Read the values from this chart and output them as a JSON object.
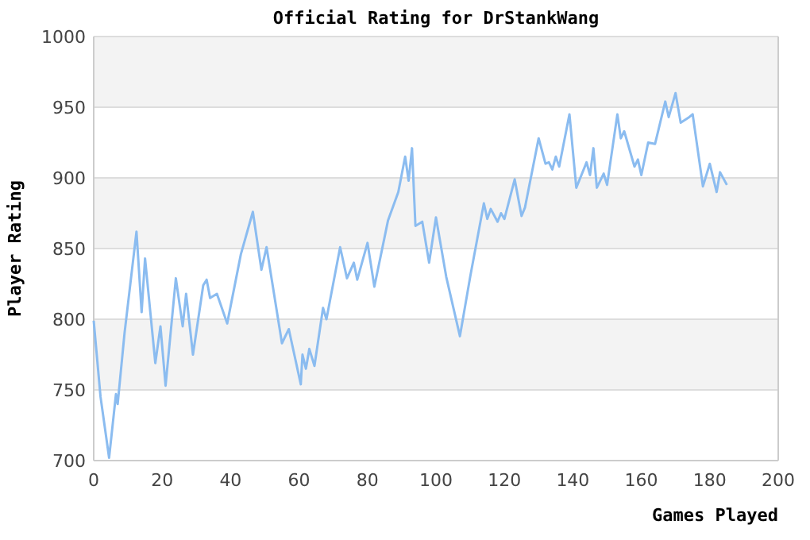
{
  "chart_data": {
    "type": "line",
    "title": "Official Rating for DrStankWang",
    "xlabel": "Games Played",
    "ylabel": "Player Rating",
    "xlim": [
      0,
      200
    ],
    "xticks": [
      0,
      20,
      40,
      60,
      80,
      100,
      120,
      140,
      160,
      180,
      200
    ],
    "ylim": [
      700,
      1000
    ],
    "yticks": [
      700,
      750,
      800,
      850,
      900,
      950,
      1000
    ],
    "grid": "y",
    "marker": "none",
    "line_style": "solid",
    "series": [
      {
        "color": "#8bbcf0",
        "x": [
          0,
          2,
          4.5,
          6.5,
          7,
          9,
          12.5,
          14,
          15,
          18,
          19.5,
          21,
          24,
          26,
          27,
          29,
          32,
          33,
          34,
          36,
          39,
          43,
          46.5,
          49,
          50.5,
          55,
          57,
          60.5,
          61,
          62,
          63,
          64.5,
          67,
          68,
          72,
          74,
          76,
          77,
          80,
          82,
          86,
          89,
          91,
          92,
          93,
          94,
          96,
          98,
          100,
          103,
          107,
          110,
          114,
          115,
          116,
          118,
          119,
          120,
          123,
          125,
          126,
          130,
          132,
          133,
          134,
          135,
          136,
          139,
          141,
          144,
          145,
          146,
          147,
          149,
          150,
          153,
          154,
          155,
          158,
          159,
          160,
          162,
          164,
          167,
          168,
          170,
          171.5,
          174,
          175,
          178,
          180,
          182,
          183,
          185
        ],
        "values": [
          799,
          745,
          702,
          747,
          740,
          790,
          862,
          805,
          843,
          769,
          795,
          753,
          829,
          795,
          818,
          775,
          824,
          828,
          815,
          818,
          797,
          846,
          876,
          835,
          851,
          783,
          793,
          754,
          775,
          765,
          779,
          767,
          808,
          800,
          851,
          829,
          840,
          828,
          854,
          823,
          870,
          890,
          915,
          898,
          921,
          866,
          869,
          840,
          872,
          830,
          788,
          830,
          882,
          871,
          878,
          869,
          875,
          871,
          899,
          873,
          879,
          928,
          910,
          911,
          906,
          915,
          908,
          945,
          893,
          911,
          902,
          921,
          893,
          903,
          895,
          945,
          928,
          933,
          908,
          913,
          902,
          925,
          924,
          954,
          943,
          960,
          939,
          943,
          945,
          894,
          910,
          890,
          904,
          895
        ]
      }
    ]
  }
}
